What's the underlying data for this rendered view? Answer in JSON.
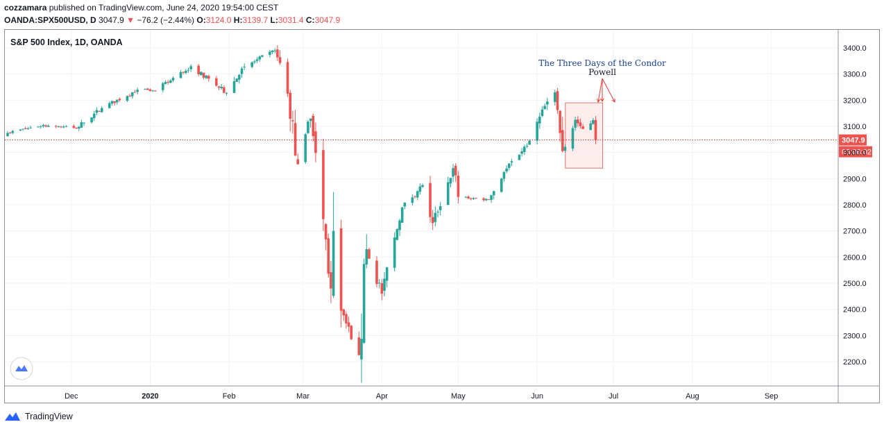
{
  "header": {
    "author": "cozzamara",
    "published_text": "published on TradingView.com, June 24, 2020 19:54:00 CEST"
  },
  "ohlc": {
    "symbol": "OANDA:SPX500USD, D",
    "last": "3047.9",
    "change_arrow": "▼",
    "change": "−76.2 (−2.44%)",
    "open_label": "O:",
    "open": "3124.0",
    "high_label": "H:",
    "high": "3139.7",
    "low_label": "L:",
    "low": "3031.4",
    "close_label": "C:",
    "close": "3047.9"
  },
  "footer": {
    "brand": "TradingView",
    "logo_icon": "tradingview-logo-icon"
  },
  "colors": {
    "up": "#26a69a",
    "down": "#ef5350",
    "annotation_blue": "#1a3f8f",
    "price_line": "#c62828",
    "box_fill": "#fde7e7",
    "box_stroke": "#e57373"
  },
  "chart_data": {
    "type": "candlestick",
    "title": "S&P 500 Index, 1D, OANDA",
    "ylim": [
      2135,
      3445
    ],
    "yticks": [
      2200,
      2300,
      2400,
      2500,
      2600,
      2700,
      2800,
      2900,
      3000,
      3100,
      3200,
      3300,
      3400
    ],
    "ytick_labels": [
      "2200.0",
      "2300.0",
      "2400.0",
      "2500.0",
      "2600.0",
      "2700.0",
      "2800.0",
      "2900.0",
      "3000.0",
      "3100.0",
      "3200.0",
      "3300.0",
      "3400.0"
    ],
    "x_start": "2019-11-06",
    "x_end": "2020-09-21",
    "xticks": [
      {
        "date": "2019-12-01",
        "label": "Dec"
      },
      {
        "date": "2020-01-01",
        "label": "2020"
      },
      {
        "date": "2020-02-01",
        "label": "Feb"
      },
      {
        "date": "2020-03-01",
        "label": "Mar"
      },
      {
        "date": "2020-04-01",
        "label": "Apr"
      },
      {
        "date": "2020-05-01",
        "label": "May"
      },
      {
        "date": "2020-06-01",
        "label": "Jun"
      },
      {
        "date": "2020-07-01",
        "label": "Jul"
      },
      {
        "date": "2020-08-01",
        "label": "Aug"
      },
      {
        "date": "2020-09-01",
        "label": "Sep"
      }
    ],
    "last_price": 3047.9,
    "last_price_label": "3047.9",
    "countdown_label": "03:06:02",
    "grid": true,
    "anchors": [
      {
        "date": "2019-11-06",
        "close": 3075
      },
      {
        "date": "2019-11-20",
        "close": 3105
      },
      {
        "date": "2019-12-03",
        "close": 3093
      },
      {
        "date": "2019-12-13",
        "close": 3170
      },
      {
        "date": "2019-12-27",
        "close": 3240
      },
      {
        "date": "2020-01-03",
        "close": 3235
      },
      {
        "date": "2020-01-17",
        "close": 3330
      },
      {
        "date": "2020-01-31",
        "close": 3228
      },
      {
        "date": "2020-02-07",
        "close": 3328
      },
      {
        "date": "2020-02-19",
        "close": 3390
      },
      {
        "date": "2020-02-24",
        "close": 3225
      },
      {
        "date": "2020-02-28",
        "close": 2955
      },
      {
        "date": "2020-03-04",
        "close": 3130
      },
      {
        "date": "2020-03-09",
        "close": 2745
      },
      {
        "date": "2020-03-12",
        "close": 2480
      },
      {
        "date": "2020-03-13",
        "close": 2700
      },
      {
        "date": "2020-03-16",
        "close": 2395
      },
      {
        "date": "2020-03-23",
        "close": 2225
      },
      {
        "date": "2020-03-26",
        "close": 2630
      },
      {
        "date": "2020-04-01",
        "close": 2460
      },
      {
        "date": "2020-04-09",
        "close": 2790
      },
      {
        "date": "2020-04-17",
        "close": 2875
      },
      {
        "date": "2020-04-21",
        "close": 2730
      },
      {
        "date": "2020-04-29",
        "close": 2940
      },
      {
        "date": "2020-05-01",
        "close": 2830
      },
      {
        "date": "2020-05-13",
        "close": 2820
      },
      {
        "date": "2020-05-19",
        "close": 2925
      },
      {
        "date": "2020-05-29",
        "close": 3045
      },
      {
        "date": "2020-06-05",
        "close": 3195
      },
      {
        "date": "2020-06-08",
        "close": 3230
      },
      {
        "date": "2020-06-11",
        "close": 3005
      },
      {
        "date": "2020-06-16",
        "close": 3125
      },
      {
        "date": "2020-06-19",
        "close": 3090
      },
      {
        "date": "2020-06-23",
        "close": 3124
      },
      {
        "date": "2020-06-24",
        "close": 3047.9
      }
    ],
    "annotations": {
      "condor_text": "The Three Days of the Condor",
      "powell_text": "Powell",
      "box_date_start": "2020-06-11",
      "box_date_end": "2020-06-24",
      "box_price_top": 3190,
      "box_price_bottom": 2940
    }
  }
}
